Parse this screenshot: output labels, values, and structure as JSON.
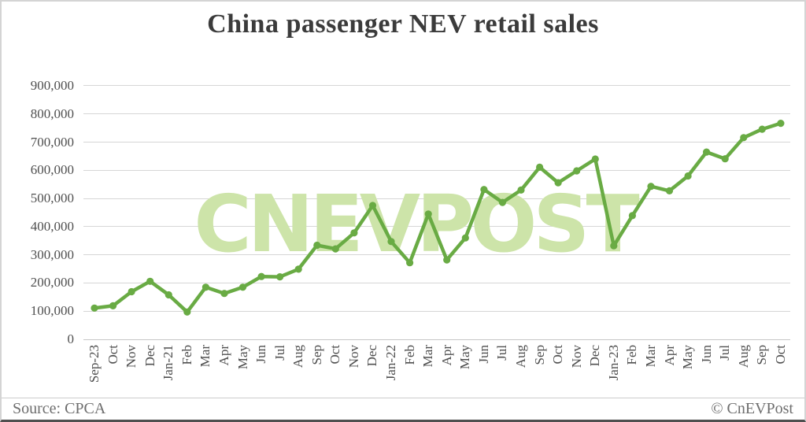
{
  "title": "China passenger NEV retail sales",
  "watermark": "CNEVPOST",
  "footer": {
    "source": "Source: CPCA",
    "copyright": "© CnEVPost"
  },
  "colors": {
    "line": "#69ab44",
    "dot": "#69ab44",
    "watermark": "#cde4a9",
    "gridline": "#d6d6d6",
    "axis": "#c6c6c6",
    "title_text": "#3b3b3b",
    "tick_text": "#4f4f4f",
    "footer_text": "#6e6e6e"
  },
  "chart_data": {
    "type": "line",
    "title": "China passenger NEV retail sales",
    "series_name": "China passenger NEV retail sales",
    "categories": [
      "Sep-23",
      "Oct",
      "Nov",
      "Dec",
      "Jan-21",
      "Feb",
      "Mar",
      "Apr",
      "May",
      "Jun",
      "Jul",
      "Aug",
      "Sep",
      "Oct",
      "Nov",
      "Dec",
      "Jan-22",
      "Feb",
      "Mar",
      "Apr",
      "May",
      "Jun",
      "Jul",
      "Aug",
      "Sep",
      "Oct",
      "Nov",
      "Dec",
      "Jan-23",
      "Feb",
      "Mar",
      "Apr",
      "May",
      "Jun",
      "Jul",
      "Aug",
      "Sep",
      "Oct"
    ],
    "values": [
      111000,
      119000,
      169000,
      206000,
      158000,
      97000,
      185000,
      163000,
      185000,
      223000,
      222000,
      249000,
      334000,
      321000,
      378000,
      475000,
      347000,
      272000,
      445000,
      282000,
      360000,
      532000,
      486000,
      530000,
      611000,
      556000,
      598000,
      640000,
      332000,
      439000,
      543000,
      527000,
      580000,
      665000,
      641000,
      716000,
      746000,
      767000
    ],
    "ylim": [
      0,
      900000
    ],
    "ytick_step": 100000,
    "ytick_labels": [
      "0",
      "100,000",
      "200,000",
      "300,000",
      "400,000",
      "500,000",
      "600,000",
      "700,000",
      "800,000",
      "900,000"
    ],
    "grid": true,
    "legend": false,
    "xlabel": "",
    "ylabel": ""
  }
}
